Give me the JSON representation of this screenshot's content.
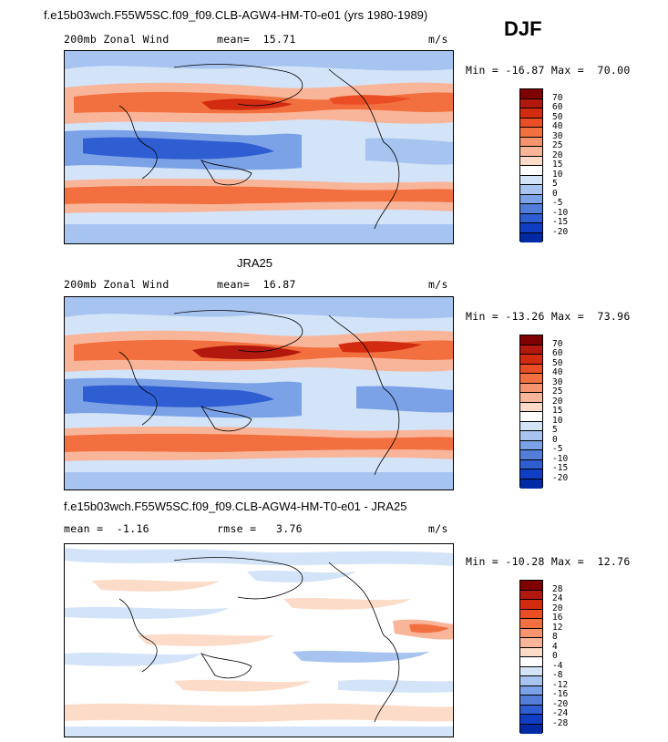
{
  "header": {
    "title": "f.e15b03wch.F55W5SC.f09_f09.CLB-AGW4-HM-T0-e01 (yrs 1980-1989)",
    "season": "DJF"
  },
  "panels": [
    {
      "heading": "",
      "left_label": "200mb Zonal Wind",
      "mid_label": "mean=  15.71",
      "units": "m/s",
      "minmax": "Min = -16.87 Max =  70.00",
      "colorbar_labels": [
        "70",
        "60",
        "50",
        "40",
        "30",
        "25",
        "20",
        "15",
        "10",
        "5",
        "0",
        "-5",
        "-10",
        "-15",
        "-20"
      ],
      "colors": [
        "#7f0000",
        "#b2180e",
        "#d22b10",
        "#eb4d25",
        "#f2703f",
        "#f69470",
        "#f9b59a",
        "#fcdcc9",
        "#ffffff",
        "#d3e4f8",
        "#a7c3ef",
        "#7ba1e6",
        "#527eda",
        "#2e5ed1",
        "#0f3ec5",
        "#002aa5"
      ]
    },
    {
      "heading": "JRA25",
      "left_label": "200mb Zonal Wind",
      "mid_label": "mean=  16.87",
      "units": "m/s",
      "minmax": "Min = -13.26 Max =  73.96",
      "colorbar_labels": [
        "70",
        "60",
        "50",
        "40",
        "30",
        "25",
        "20",
        "15",
        "10",
        "5",
        "0",
        "-5",
        "-10",
        "-15",
        "-20"
      ],
      "colors": [
        "#7f0000",
        "#b2180e",
        "#d22b10",
        "#eb4d25",
        "#f2703f",
        "#f69470",
        "#f9b59a",
        "#fcdcc9",
        "#ffffff",
        "#d3e4f8",
        "#a7c3ef",
        "#7ba1e6",
        "#527eda",
        "#2e5ed1",
        "#0f3ec5",
        "#002aa5"
      ]
    },
    {
      "heading": "f.e15b03wch.F55W5SC.f09_f09.CLB-AGW4-HM-T0-e01 - JRA25",
      "left_label": "mean =  -1.16",
      "mid_label": "rmse =   3.76",
      "units": "m/s",
      "minmax": "Min = -10.28 Max =  12.76",
      "colorbar_labels": [
        "28",
        "24",
        "20",
        "16",
        "12",
        "8",
        "4",
        "0",
        "-4",
        "-8",
        "-12",
        "-16",
        "-20",
        "-24",
        "-28"
      ],
      "colors": [
        "#7f0000",
        "#b2180e",
        "#d22b10",
        "#eb4d25",
        "#f2703f",
        "#f69470",
        "#f9b59a",
        "#fcdcc9",
        "#ffffff",
        "#d3e4f8",
        "#a7c3ef",
        "#7ba1e6",
        "#527eda",
        "#2e5ed1",
        "#0f3ec5",
        "#002aa5"
      ]
    }
  ],
  "chart_data": [
    {
      "type": "heatmap",
      "title": "200mb Zonal Wind",
      "units": "m/s",
      "mean": 15.71,
      "min": -16.87,
      "max": 70.0,
      "contour_levels": [
        -20,
        -15,
        -10,
        -5,
        0,
        5,
        10,
        15,
        20,
        25,
        30,
        40,
        50,
        60,
        70
      ]
    },
    {
      "type": "heatmap",
      "title": "200mb Zonal Wind",
      "units": "m/s",
      "mean": 16.87,
      "min": -13.26,
      "max": 73.96,
      "contour_levels": [
        -20,
        -15,
        -10,
        -5,
        0,
        5,
        10,
        15,
        20,
        25,
        30,
        40,
        50,
        60,
        70
      ]
    },
    {
      "type": "heatmap",
      "title": "f.e15b03wch.F55W5SC.f09_f09.CLB-AGW4-HM-T0-e01 - JRA25",
      "units": "m/s",
      "mean": -1.16,
      "rmse": 3.76,
      "min": -10.28,
      "max": 12.76,
      "contour_levels": [
        -28,
        -24,
        -20,
        -16,
        -12,
        -8,
        -4,
        0,
        4,
        8,
        12,
        16,
        20,
        24,
        28
      ]
    }
  ]
}
